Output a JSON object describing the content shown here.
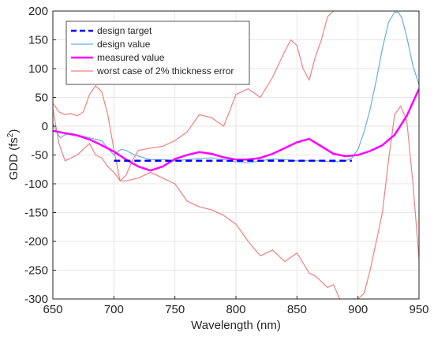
{
  "chart_data": {
    "type": "line",
    "xlabel": "Wavelength (nm)",
    "ylabel": "GDD (fs",
    "ylabel_sup": "2",
    "ylabel_close": ")",
    "xlim": [
      650,
      950
    ],
    "ylim": [
      -300,
      200
    ],
    "xticks": [
      650,
      700,
      750,
      800,
      850,
      900,
      950
    ],
    "yticks": [
      -300,
      -250,
      -200,
      -150,
      -100,
      -50,
      0,
      50,
      100,
      150,
      200
    ],
    "legend_position": "top-left",
    "series": [
      {
        "name": "design target",
        "color": "#0000ff",
        "style": "dashed",
        "x": [
          700,
          895
        ],
        "y": [
          -60,
          -60
        ]
      },
      {
        "name": "design value",
        "color": "#6aaedc",
        "style": "solid",
        "x": [
          650,
          653,
          656,
          660,
          665,
          670,
          680,
          690,
          695,
          700,
          703,
          706,
          710,
          715,
          720,
          725,
          730,
          740,
          750,
          760,
          770,
          780,
          790,
          800,
          810,
          820,
          830,
          840,
          850,
          860,
          870,
          880,
          890,
          895,
          900,
          905,
          910,
          915,
          920,
          925,
          930,
          933,
          936,
          940,
          945,
          950
        ],
        "y": [
          5,
          -10,
          -20,
          -15,
          -12,
          -15,
          -20,
          -25,
          -38,
          -50,
          -45,
          -40,
          -42,
          -48,
          -52,
          -55,
          -58,
          -58,
          -60,
          -58,
          -56,
          -55,
          -58,
          -62,
          -64,
          -60,
          -57,
          -58,
          -60,
          -60,
          -60,
          -62,
          -60,
          -55,
          -40,
          -10,
          30,
          80,
          135,
          180,
          198,
          198,
          188,
          155,
          105,
          72
        ]
      },
      {
        "name": "measured value",
        "color": "#ff00ff",
        "style": "solid",
        "x": [
          650,
          660,
          670,
          680,
          690,
          700,
          710,
          720,
          730,
          740,
          750,
          760,
          770,
          780,
          790,
          800,
          810,
          820,
          830,
          840,
          850,
          860,
          870,
          880,
          890,
          900,
          910,
          920,
          930,
          940,
          950
        ],
        "y": [
          -8,
          -12,
          -16,
          -23,
          -33,
          -44,
          -58,
          -70,
          -77,
          -70,
          -57,
          -50,
          -45,
          -48,
          -54,
          -58,
          -58,
          -55,
          -48,
          -38,
          -28,
          -22,
          -35,
          -48,
          -52,
          -50,
          -43,
          -33,
          -15,
          18,
          65
        ]
      },
      {
        "name": "worst case of 2% thickness error",
        "color": "#f08080",
        "style": "solid",
        "x": [
          650,
          655,
          660,
          665,
          670,
          675,
          680,
          685,
          690,
          695,
          700,
          705,
          710,
          715,
          720,
          730,
          740,
          750,
          760,
          770,
          780,
          790,
          800,
          810,
          820,
          830,
          840,
          845,
          850,
          855,
          860,
          865,
          870,
          875,
          880,
          885,
          890,
          895,
          900,
          905,
          910,
          915,
          920,
          925,
          930,
          935,
          940,
          945,
          950
        ],
        "y": [
          40,
          25,
          20,
          22,
          18,
          25,
          55,
          70,
          60,
          20,
          -40,
          -95,
          -85,
          -60,
          -42,
          -38,
          -35,
          -25,
          -10,
          20,
          15,
          0,
          55,
          65,
          50,
          85,
          130,
          150,
          140,
          100,
          80,
          120,
          150,
          190,
          200,
          210,
          205,
          215,
          215,
          220,
          230,
          225,
          210,
          205,
          200,
          215,
          210,
          205,
          200
        ]
      },
      {
        "name": "worst case of 2% thickness error (lower)",
        "color": "#f08080",
        "style": "solid",
        "x": [
          650,
          655,
          660,
          665,
          670,
          675,
          680,
          685,
          690,
          695,
          700,
          705,
          710,
          720,
          730,
          740,
          750,
          760,
          770,
          780,
          790,
          800,
          810,
          820,
          830,
          840,
          850,
          860,
          865,
          870,
          875,
          880,
          885,
          890,
          895,
          900,
          905,
          910,
          915,
          920,
          925,
          930,
          935,
          940,
          945,
          950
        ],
        "y": [
          30,
          -30,
          -60,
          -55,
          -50,
          -40,
          -30,
          -50,
          -55,
          -70,
          -80,
          -95,
          -95,
          -90,
          -80,
          -90,
          -100,
          -130,
          -140,
          -145,
          -155,
          -170,
          -200,
          -225,
          -215,
          -235,
          -220,
          -255,
          -260,
          -270,
          -280,
          -275,
          -300,
          -320,
          -300,
          -300,
          -290,
          -250,
          -200,
          -150,
          -60,
          20,
          35,
          10,
          -100,
          -230
        ]
      }
    ]
  }
}
